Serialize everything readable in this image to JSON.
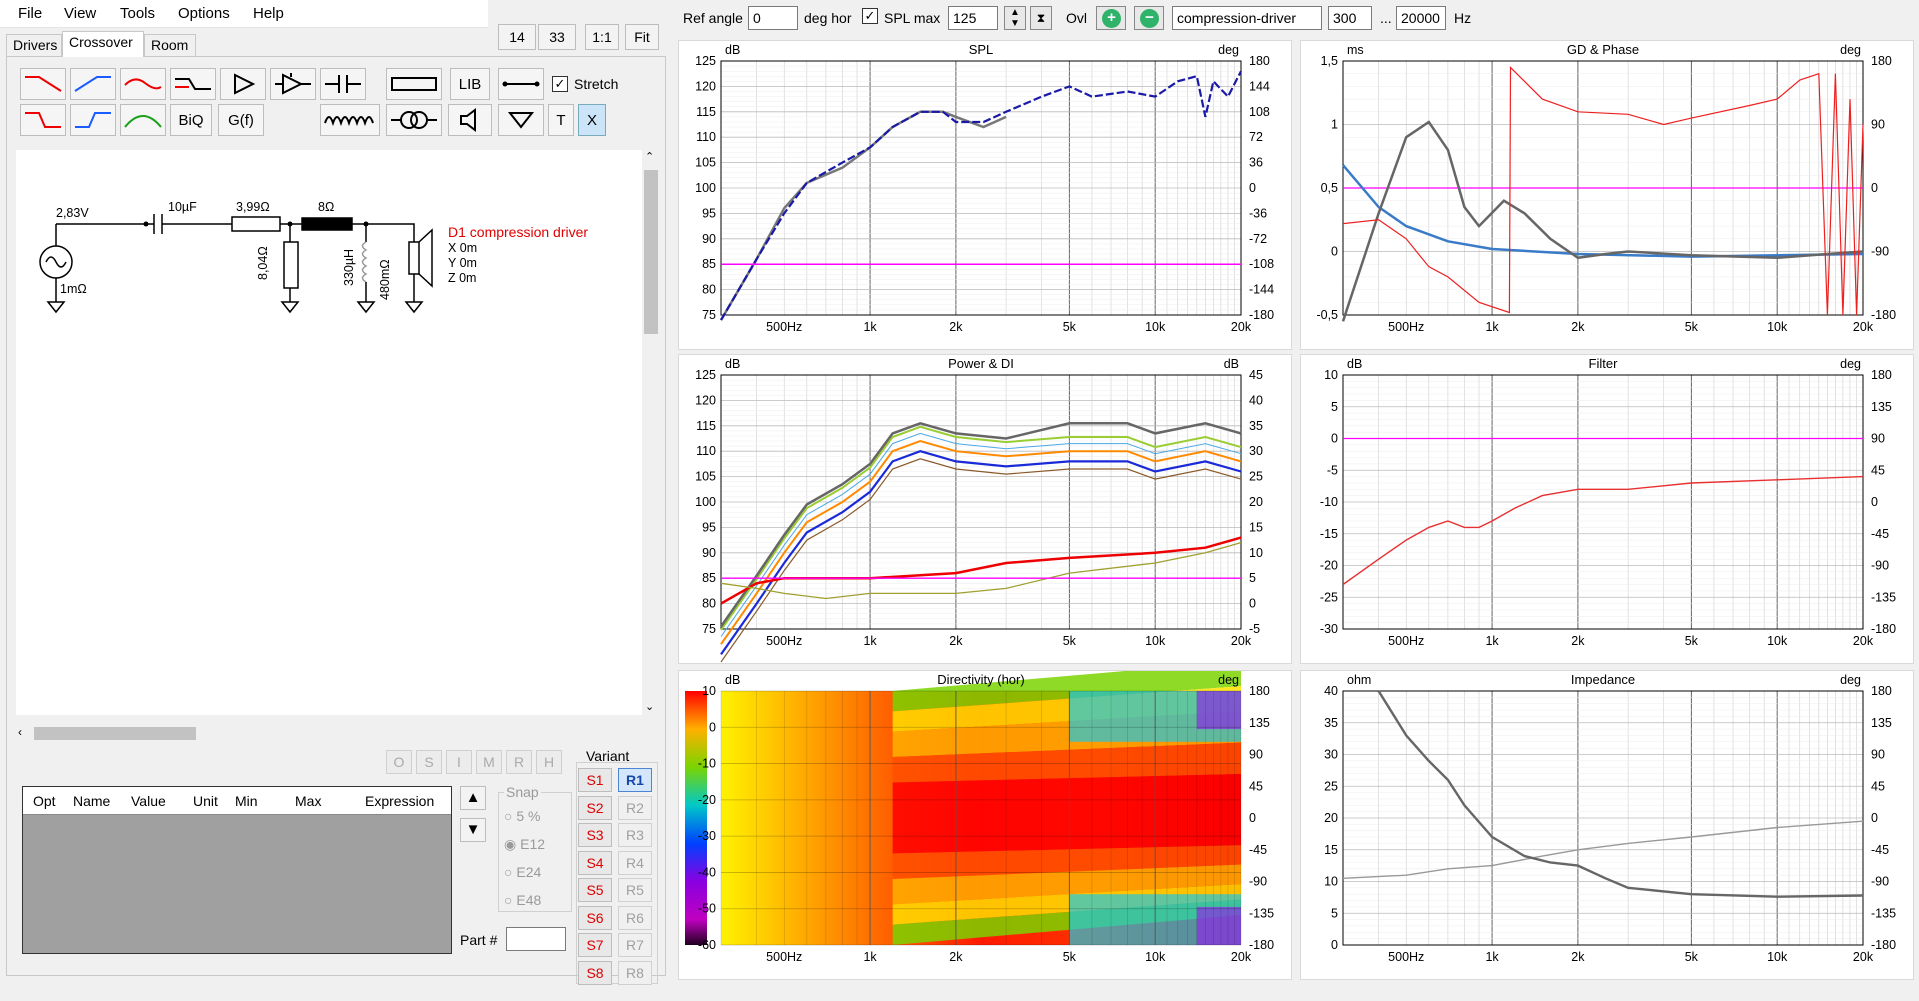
{
  "menu": [
    "File",
    "View",
    "Tools",
    "Options",
    "Help"
  ],
  "tabs": [
    "Drivers",
    "Crossover",
    "Room"
  ],
  "zoom_buttons": [
    "14",
    "33",
    "1:1",
    "Fit"
  ],
  "palette": {
    "lib": "LIB",
    "biq": "BiQ",
    "gf": "G(f)",
    "t": "T",
    "x": "X",
    "stretch": "Stretch"
  },
  "schematic": {
    "source_voltage": "2,83V",
    "source_res": "1mΩ",
    "cap": "10µF",
    "res_series": "3,99Ω",
    "res_8": "8Ω",
    "res_shunt": "8,04Ω",
    "inductor": "330µH",
    "ind_res": "480mΩ",
    "driver_name": "D1 compression driver",
    "x": "X 0m",
    "y": "Y 0m",
    "z": "Z 0m"
  },
  "opt_buttons": [
    "O",
    "S",
    "I",
    "M",
    "R",
    "H"
  ],
  "table": {
    "headers": [
      "Opt",
      "Name",
      "Value",
      "Unit",
      "Min",
      "Max",
      "Expression"
    ]
  },
  "snap": {
    "label": "Snap",
    "options": [
      "5 %",
      "E12",
      "E24",
      "E48"
    ]
  },
  "part_label": "Part #",
  "variant": {
    "label": "Variant",
    "s": [
      "S1",
      "S2",
      "S3",
      "S4",
      "S5",
      "S6",
      "S7",
      "S8"
    ],
    "r": [
      "R1",
      "R2",
      "R3",
      "R4",
      "R5",
      "R6",
      "R7",
      "R8"
    ]
  },
  "toolbar": {
    "ref_angle_label": "Ref angle",
    "ref_angle": "0",
    "deg_hor": "deg hor",
    "spl_max_label": "SPL max",
    "spl_max": "125",
    "ovl": "Ovl",
    "driver_field": "compression-driver",
    "f_low": "300",
    "ellipsis": "...",
    "f_high": "20000",
    "hz": "Hz"
  },
  "colors": {
    "accent_blue": "#1a1aa8",
    "magenta": "#ff00ff",
    "red": "#e60000",
    "gray": "#6a6a6a"
  },
  "x_ticks": [
    "500Hz",
    "1k",
    "2k",
    "5k",
    "10k",
    "20k"
  ],
  "charts": {
    "spl": {
      "title": "SPL",
      "left_unit": "dB",
      "right_unit": "deg",
      "left_ticks": [
        "125",
        "120",
        "115",
        "110",
        "105",
        "100",
        "95",
        "90",
        "85",
        "80",
        "75"
      ],
      "right_ticks": [
        "180",
        "144",
        "108",
        "72",
        "36",
        "0",
        "-36",
        "-72",
        "-108",
        "-144",
        "-180"
      ]
    },
    "gd": {
      "title": "GD & Phase",
      "left_unit": "ms",
      "right_unit": "deg",
      "left_ticks": [
        "1,5",
        "1",
        "0,5",
        "0",
        "-0,5"
      ],
      "right_ticks": [
        "180",
        "90",
        "0",
        "-90",
        "-180"
      ]
    },
    "power": {
      "title": "Power & DI",
      "left_unit": "dB",
      "right_unit": "dB",
      "left_ticks": [
        "125",
        "120",
        "115",
        "110",
        "105",
        "100",
        "95",
        "90",
        "85",
        "80",
        "75"
      ],
      "right_ticks": [
        "45",
        "40",
        "35",
        "30",
        "25",
        "20",
        "15",
        "10",
        "5",
        "0",
        "-5"
      ]
    },
    "filter": {
      "title": "Filter",
      "left_unit": "dB",
      "right_unit": "deg",
      "left_ticks": [
        "10",
        "5",
        "0",
        "-5",
        "-10",
        "-15",
        "-20",
        "-25",
        "-30"
      ],
      "right_ticks": [
        "180",
        "135",
        "90",
        "45",
        "0",
        "-45",
        "-90",
        "-135",
        "-180"
      ]
    },
    "dir": {
      "title": "Directivity (hor)",
      "left_unit": "dB",
      "right_unit": "deg",
      "left_ticks": [
        "10",
        "0",
        "-10",
        "-20",
        "-30",
        "-40",
        "-50",
        "-60"
      ],
      "right_ticks": [
        "180",
        "135",
        "90",
        "45",
        "0",
        "-45",
        "-90",
        "-135",
        "-180"
      ]
    },
    "imp": {
      "title": "Impedance",
      "left_unit": "ohm",
      "right_unit": "deg",
      "left_ticks": [
        "40",
        "35",
        "30",
        "25",
        "20",
        "15",
        "10",
        "5",
        "0"
      ],
      "right_ticks": [
        "180",
        "135",
        "90",
        "45",
        "0",
        "-45",
        "-90",
        "-135",
        "-180"
      ]
    }
  }
}
